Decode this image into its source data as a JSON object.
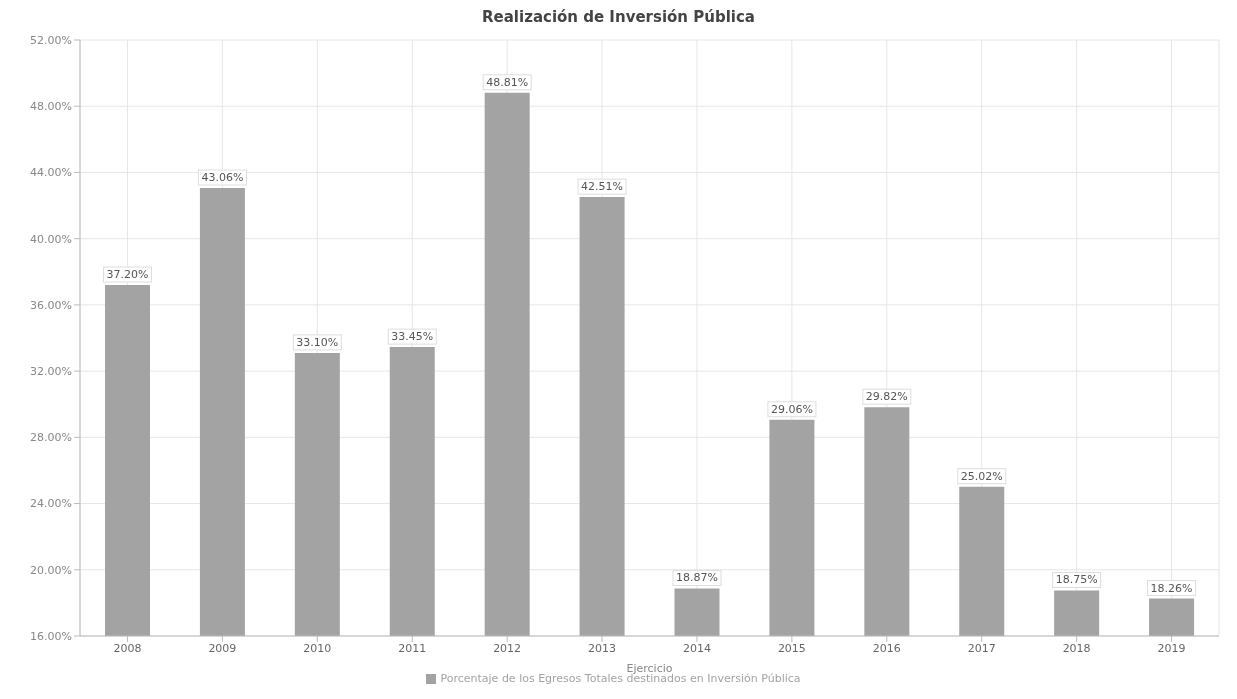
{
  "chart_data": {
    "type": "bar",
    "title": "Realización de Inversión Pública",
    "xlabel": "Ejercicio",
    "categories": [
      "2008",
      "2009",
      "2010",
      "2011",
      "2012",
      "2013",
      "2014",
      "2015",
      "2016",
      "2017",
      "2018",
      "2019"
    ],
    "series": [
      {
        "name": "Porcentaje de los Egresos Totales destinados en Inversión Pública",
        "color": "#a3a3a3",
        "values": [
          37.2,
          43.06,
          33.1,
          33.45,
          48.81,
          42.51,
          18.87,
          29.06,
          29.82,
          25.02,
          18.75,
          18.26
        ],
        "value_labels": [
          "37.20%",
          "43.06%",
          "33.10%",
          "33.45%",
          "48.81%",
          "42.51%",
          "18.87%",
          "29.06%",
          "29.82%",
          "25.02%",
          "18.75%",
          "18.26%"
        ]
      }
    ],
    "ylim": [
      16,
      52
    ],
    "yticks": [
      {
        "value": 16,
        "label": "16.00%"
      },
      {
        "value": 20,
        "label": "20.00%"
      },
      {
        "value": 24,
        "label": "24.00%"
      },
      {
        "value": 28,
        "label": "28.00%"
      },
      {
        "value": 32,
        "label": "32.00%"
      },
      {
        "value": 36,
        "label": "36.00%"
      },
      {
        "value": 40,
        "label": "40.00%"
      },
      {
        "value": 44,
        "label": "44.00%"
      },
      {
        "value": 48,
        "label": "48.00%"
      },
      {
        "value": 52,
        "label": "52.00%"
      }
    ],
    "grid": true,
    "legend": "bottom"
  }
}
